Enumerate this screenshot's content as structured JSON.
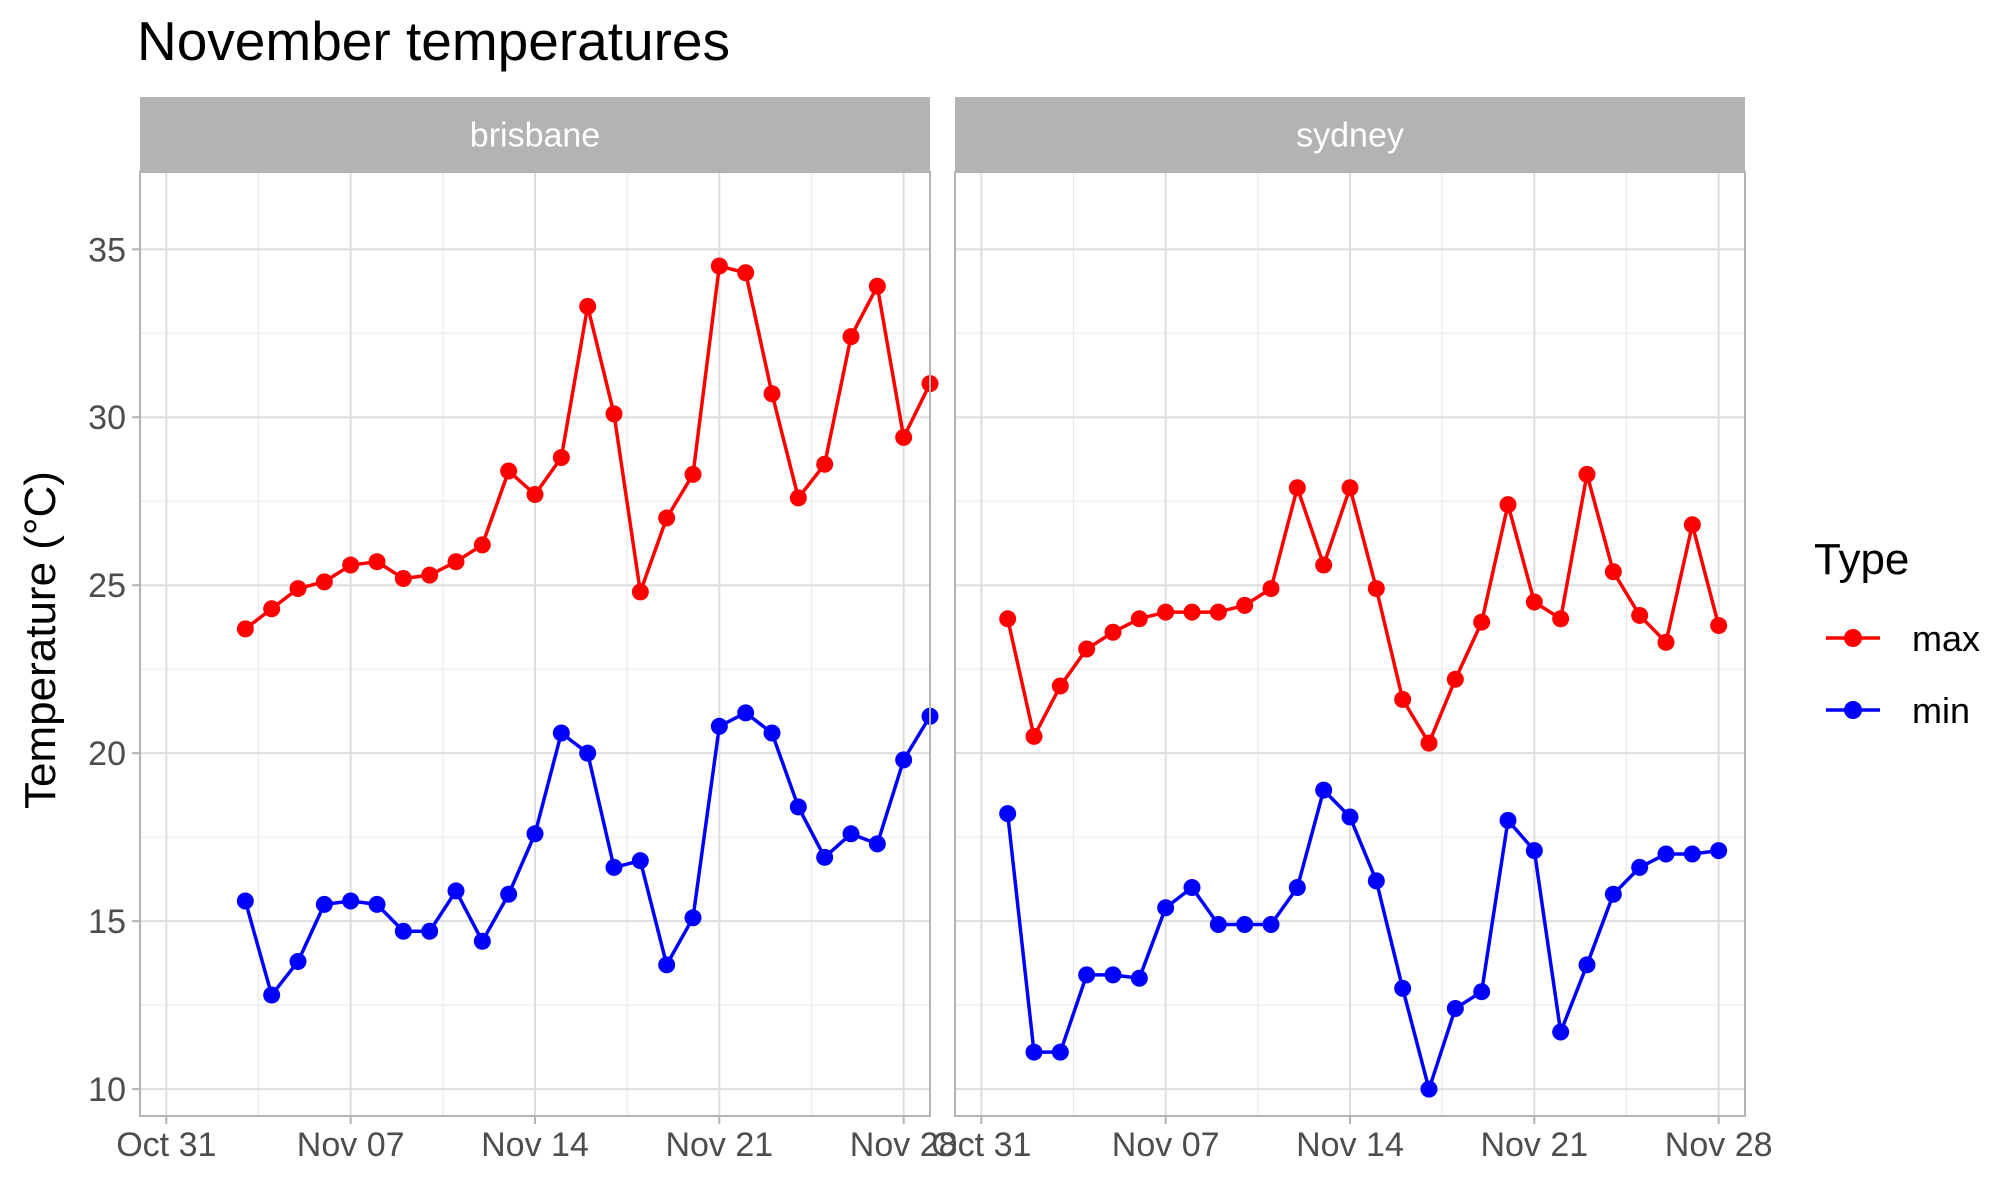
{
  "chart_data": {
    "type": "line",
    "title": "November temperatures",
    "ylabel": "Temperature (°C)",
    "xlabel": "",
    "ylim": [
      9.2,
      37.3
    ],
    "yticks": [
      10,
      15,
      20,
      25,
      30,
      35
    ],
    "x_range": [
      "2022-10-30",
      "2022-11-29"
    ],
    "xticks": [
      "2022-10-31",
      "2022-11-07",
      "2022-11-14",
      "2022-11-21",
      "2022-11-28"
    ],
    "xtick_labels": [
      "Oct 31",
      "Nov 07",
      "Nov 14",
      "Nov 21",
      "Nov 28"
    ],
    "grid": true,
    "legend": {
      "title": "Type",
      "position": "right",
      "entries": [
        {
          "label": "max",
          "color": "#FF0000"
        },
        {
          "label": "min",
          "color": "#0000FF"
        }
      ]
    },
    "facets": [
      {
        "label": "brisbane",
        "series": [
          {
            "name": "max",
            "color": "#FF0000",
            "x": [
              "2022-11-03",
              "2022-11-04",
              "2022-11-05",
              "2022-11-06",
              "2022-11-07",
              "2022-11-08",
              "2022-11-09",
              "2022-11-10",
              "2022-11-11",
              "2022-11-12",
              "2022-11-13",
              "2022-11-14",
              "2022-11-15",
              "2022-11-16",
              "2022-11-17",
              "2022-11-18",
              "2022-11-19",
              "2022-11-20",
              "2022-11-21",
              "2022-11-22",
              "2022-11-23",
              "2022-11-24",
              "2022-11-25",
              "2022-11-26",
              "2022-11-27",
              "2022-11-28",
              "2022-11-29"
            ],
            "values": [
              23.7,
              24.3,
              24.9,
              25.1,
              25.6,
              25.7,
              25.2,
              25.3,
              25.7,
              26.2,
              28.4,
              27.7,
              28.8,
              33.3,
              30.1,
              24.8,
              27.0,
              28.3,
              34.5,
              34.3,
              30.7,
              27.6,
              28.6,
              32.4,
              33.9,
              29.4,
              31.0
            ]
          },
          {
            "name": "min",
            "color": "#0000FF",
            "x": [
              "2022-11-03",
              "2022-11-04",
              "2022-11-05",
              "2022-11-06",
              "2022-11-07",
              "2022-11-08",
              "2022-11-09",
              "2022-11-10",
              "2022-11-11",
              "2022-11-12",
              "2022-11-13",
              "2022-11-14",
              "2022-11-15",
              "2022-11-16",
              "2022-11-17",
              "2022-11-18",
              "2022-11-19",
              "2022-11-20",
              "2022-11-21",
              "2022-11-22",
              "2022-11-23",
              "2022-11-24",
              "2022-11-25",
              "2022-11-26",
              "2022-11-27",
              "2022-11-28",
              "2022-11-29"
            ],
            "values": [
              15.6,
              12.8,
              13.8,
              15.5,
              15.6,
              15.5,
              14.7,
              14.7,
              15.9,
              14.4,
              15.8,
              17.6,
              20.6,
              20.0,
              16.6,
              16.8,
              13.7,
              15.1,
              20.8,
              21.2,
              20.6,
              18.4,
              16.9,
              17.6,
              17.3,
              19.8,
              21.1
            ]
          }
        ]
      },
      {
        "label": "sydney",
        "series": [
          {
            "name": "max",
            "color": "#FF0000",
            "x": [
              "2022-11-01",
              "2022-11-02",
              "2022-11-03",
              "2022-11-04",
              "2022-11-05",
              "2022-11-06",
              "2022-11-07",
              "2022-11-08",
              "2022-11-09",
              "2022-11-10",
              "2022-11-11",
              "2022-11-12",
              "2022-11-13",
              "2022-11-14",
              "2022-11-15",
              "2022-11-16",
              "2022-11-17",
              "2022-11-18",
              "2022-11-19",
              "2022-11-20",
              "2022-11-21",
              "2022-11-22",
              "2022-11-23",
              "2022-11-24",
              "2022-11-25",
              "2022-11-26",
              "2022-11-27",
              "2022-11-28"
            ],
            "values": [
              24.0,
              20.5,
              22.0,
              23.1,
              23.6,
              24.0,
              24.2,
              24.2,
              24.2,
              24.4,
              24.9,
              27.9,
              25.6,
              27.9,
              24.9,
              21.6,
              20.3,
              22.2,
              23.9,
              27.4,
              24.5,
              24.0,
              28.3,
              25.4,
              24.1,
              23.3,
              26.8,
              23.8
            ]
          },
          {
            "name": "min",
            "color": "#0000FF",
            "x": [
              "2022-11-01",
              "2022-11-02",
              "2022-11-03",
              "2022-11-04",
              "2022-11-05",
              "2022-11-06",
              "2022-11-07",
              "2022-11-08",
              "2022-11-09",
              "2022-11-10",
              "2022-11-11",
              "2022-11-12",
              "2022-11-13",
              "2022-11-14",
              "2022-11-15",
              "2022-11-16",
              "2022-11-17",
              "2022-11-18",
              "2022-11-19",
              "2022-11-20",
              "2022-11-21",
              "2022-11-22",
              "2022-11-23",
              "2022-11-24",
              "2022-11-25",
              "2022-11-26",
              "2022-11-27",
              "2022-11-28"
            ],
            "values": [
              18.2,
              11.1,
              11.1,
              13.4,
              13.4,
              13.3,
              15.4,
              16.0,
              14.9,
              14.9,
              14.9,
              16.0,
              18.9,
              18.1,
              16.2,
              13.0,
              10.0,
              12.4,
              12.9,
              18.0,
              17.1,
              11.7,
              13.7,
              15.8,
              16.6,
              17.0,
              17.0,
              17.1
            ]
          }
        ]
      }
    ]
  }
}
